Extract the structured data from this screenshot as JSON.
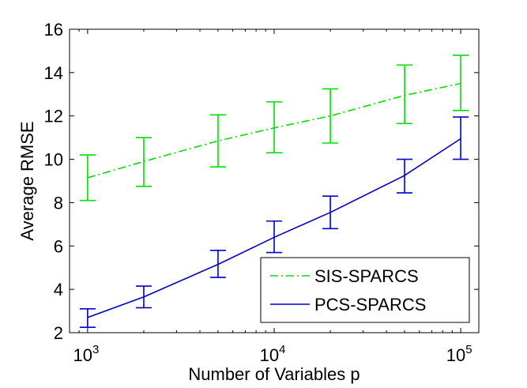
{
  "chart_data": {
    "type": "line",
    "xscale": "log",
    "xlabel": "Number of Variables p",
    "ylabel": "Average RMSE",
    "xlim": [
      800,
      125000
    ],
    "ylim": [
      2,
      16
    ],
    "xticks": [
      {
        "value": 1000,
        "base": "10",
        "exp": "3"
      },
      {
        "value": 10000,
        "base": "10",
        "exp": "4"
      },
      {
        "value": 100000,
        "base": "10",
        "exp": "5"
      }
    ],
    "yticks": [
      "2",
      "4",
      "6",
      "8",
      "10",
      "12",
      "14",
      "16"
    ],
    "legend_position": "bottom-right",
    "grid": false,
    "series": [
      {
        "name": "SIS-SPARCS",
        "color": "#00e000",
        "dash": "dash-dot",
        "x": [
          1000,
          2000,
          5000,
          10000,
          20000,
          50000,
          100000
        ],
        "y": [
          9.15,
          9.9,
          10.85,
          11.45,
          12.0,
          12.95,
          13.5
        ],
        "err_low": [
          8.1,
          8.75,
          9.65,
          10.3,
          10.75,
          11.65,
          12.25
        ],
        "err_high": [
          10.2,
          11.0,
          12.05,
          12.65,
          13.25,
          14.35,
          14.8
        ]
      },
      {
        "name": "PCS-SPARCS",
        "color": "#0000cc",
        "dash": "solid",
        "x": [
          1000,
          2000,
          5000,
          10000,
          20000,
          50000,
          100000
        ],
        "y": [
          2.7,
          3.65,
          5.15,
          6.4,
          7.55,
          9.25,
          10.95
        ],
        "err_low": [
          2.25,
          3.15,
          4.55,
          5.7,
          6.8,
          8.45,
          10.0
        ],
        "err_high": [
          3.1,
          4.15,
          5.8,
          7.15,
          8.3,
          10.0,
          11.95
        ]
      }
    ]
  }
}
